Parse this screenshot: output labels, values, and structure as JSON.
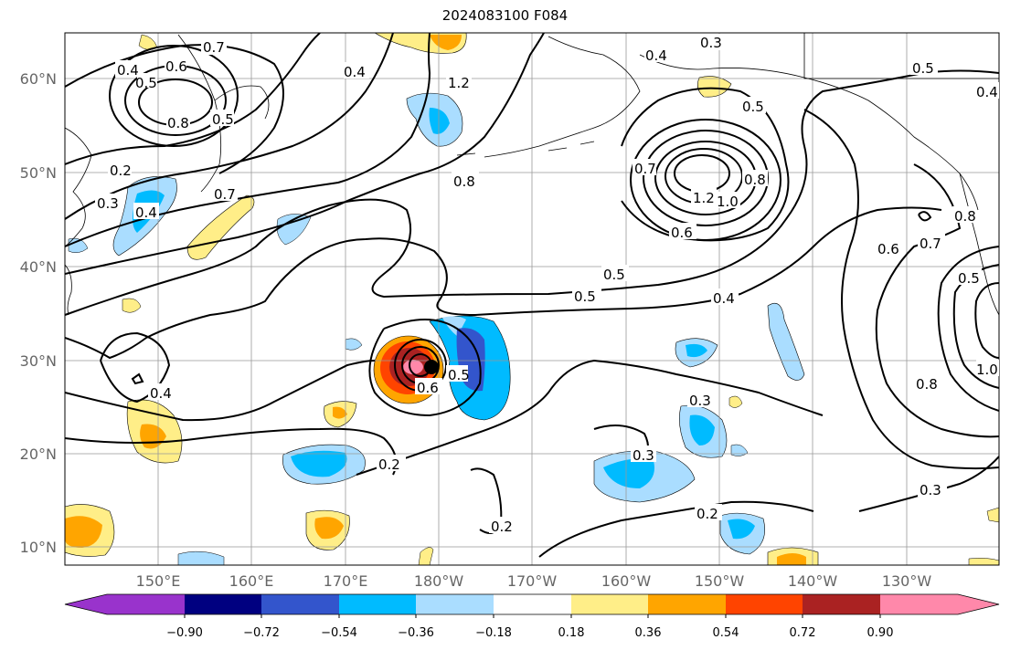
{
  "title": "2024083100 F084",
  "latitude_labels": [
    "60°N",
    "50°N",
    "40°N",
    "30°N",
    "20°N",
    "10°N"
  ],
  "longitude_labels": [
    "150°E",
    "160°E",
    "170°E",
    "180°W",
    "170°W",
    "160°W",
    "150°W",
    "140°W",
    "130°W"
  ],
  "colorbar": {
    "tick_labels": [
      "−0.90",
      "−0.72",
      "−0.54",
      "−0.36",
      "−0.18",
      "0.18",
      "0.36",
      "0.54",
      "0.72",
      "0.90"
    ],
    "colors": [
      "#9933cc",
      "#000080",
      "#3355cc",
      "#00bbff",
      "#aaddff",
      "#ffffff",
      "#ffee88",
      "#ffa500",
      "#ff4400",
      "#aa2222",
      "#ff88aa"
    ]
  },
  "contour_labels": [
    "0.7",
    "0.4",
    "0.5",
    "0.6",
    "0.8",
    "0.5",
    "0.4",
    "1.2",
    "0.4",
    "0.3",
    "0.5",
    "0.4",
    "0.2",
    "0.3",
    "0.4",
    "0.7",
    "0.8",
    "0.5",
    "0.8",
    "1.0",
    "1.2",
    "0.6",
    "0.8",
    "0.7",
    "0.5",
    "0.5",
    "0.4",
    "0.6",
    "0.7",
    "0.5",
    "0.8",
    "1.0",
    "0.4",
    "0.6",
    "0.5",
    "0.3",
    "0.3",
    "0.2",
    "0.2",
    "0.2",
    "0.3"
  ]
}
